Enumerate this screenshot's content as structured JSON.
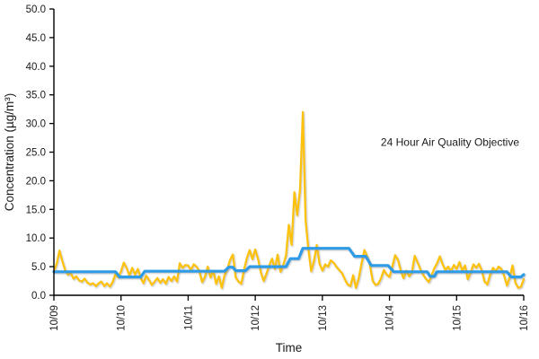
{
  "chart_data": {
    "type": "line",
    "title": "",
    "xlabel": "Time",
    "ylabel": "Concentration (µg/m³)",
    "ylim": [
      0,
      50
    ],
    "ytick_step": 5,
    "ytick_decimals": 1,
    "grid": false,
    "legend_position": "none",
    "x_categories": [
      "10/09",
      "10/10",
      "10/11",
      "10/12",
      "10/13",
      "10/14",
      "10/15",
      "10/16"
    ],
    "hours_per_category": 24,
    "x_total_hours": 168,
    "axis_color": "#000000",
    "text_color": "#1a1a1a",
    "objective": {
      "value": 25.0,
      "label": "24 Hour Air Quality Objective",
      "color": "#1e7e1e"
    },
    "series": [
      {
        "name": "hourly-concentration",
        "color": "#fcc211",
        "width": 2.3,
        "values_hourly": [
          4.2,
          5.5,
          7.8,
          6.0,
          4.4,
          3.6,
          3.9,
          2.9,
          3.3,
          2.6,
          2.4,
          2.9,
          2.2,
          1.9,
          2.1,
          1.6,
          2.1,
          2.4,
          1.6,
          2.1,
          1.5,
          2.3,
          3.7,
          3.1,
          4.2,
          5.7,
          4.8,
          3.4,
          4.8,
          3.6,
          4.6,
          3.1,
          2.1,
          3.4,
          2.7,
          1.8,
          2.4,
          3.0,
          2.2,
          2.8,
          2.0,
          3.2,
          2.5,
          3.3,
          2.4,
          5.6,
          4.8,
          5.3,
          5.2,
          4.4,
          5.4,
          5.0,
          4.2,
          2.3,
          3.2,
          5.0,
          3.1,
          4.3,
          2.0,
          3.3,
          1.3,
          3.5,
          4.5,
          6.2,
          7.1,
          3.1,
          2.4,
          2.0,
          4.5,
          6.5,
          7.9,
          6.3,
          8.0,
          6.3,
          4.0,
          2.5,
          3.8,
          5.2,
          6.4,
          4.6,
          7.1,
          4.1,
          5.3,
          7.0,
          12.3,
          8.8,
          18.0,
          14.0,
          18.5,
          32.0,
          13.0,
          8.0,
          4.2,
          6.0,
          8.8,
          5.5,
          4.3,
          5.4,
          5.0,
          6.1,
          5.7,
          5.0,
          4.4,
          3.9,
          2.8,
          1.9,
          1.6,
          3.5,
          1.3,
          3.0,
          5.5,
          7.9,
          6.8,
          5.2,
          2.5,
          1.8,
          2.0,
          3.0,
          4.4,
          3.6,
          3.2,
          5.0,
          7.0,
          6.2,
          4.4,
          3.0,
          4.3,
          3.3,
          4.0,
          6.9,
          5.8,
          4.6,
          3.6,
          2.9,
          2.3,
          3.4,
          4.7,
          5.6,
          6.8,
          5.4,
          4.4,
          5.0,
          4.2,
          5.3,
          4.6,
          5.8,
          4.3,
          5.2,
          2.8,
          4.0,
          5.4,
          4.8,
          5.5,
          4.3,
          2.4,
          1.9,
          3.6,
          4.8,
          4.2,
          5.0,
          4.6,
          3.4,
          1.7,
          3.2,
          5.2,
          2.2,
          1.3,
          1.5,
          2.8
        ]
      },
      {
        "name": "24-hour-average",
        "color": "#2e9be6",
        "width": 3.2,
        "points": [
          [
            0,
            4.1
          ],
          [
            22,
            4.1
          ],
          [
            23.5,
            3.2
          ],
          [
            31,
            3.2
          ],
          [
            32.5,
            4.2
          ],
          [
            61,
            4.2
          ],
          [
            62.5,
            4.9
          ],
          [
            64,
            4.9
          ],
          [
            65,
            4.3
          ],
          [
            68.5,
            4.3
          ],
          [
            70,
            5.0
          ],
          [
            83,
            5.0
          ],
          [
            84.5,
            6.4
          ],
          [
            87.5,
            6.4
          ],
          [
            89,
            8.2
          ],
          [
            105.5,
            8.2
          ],
          [
            107.5,
            6.8
          ],
          [
            111.5,
            6.8
          ],
          [
            113.5,
            5.2
          ],
          [
            119.5,
            5.2
          ],
          [
            121.5,
            4.1
          ],
          [
            133.5,
            4.1
          ],
          [
            134.5,
            3.3
          ],
          [
            136,
            3.3
          ],
          [
            137,
            4.1
          ],
          [
            162,
            4.1
          ],
          [
            163.5,
            3.2
          ],
          [
            167,
            3.2
          ],
          [
            168,
            3.6
          ]
        ]
      }
    ]
  }
}
